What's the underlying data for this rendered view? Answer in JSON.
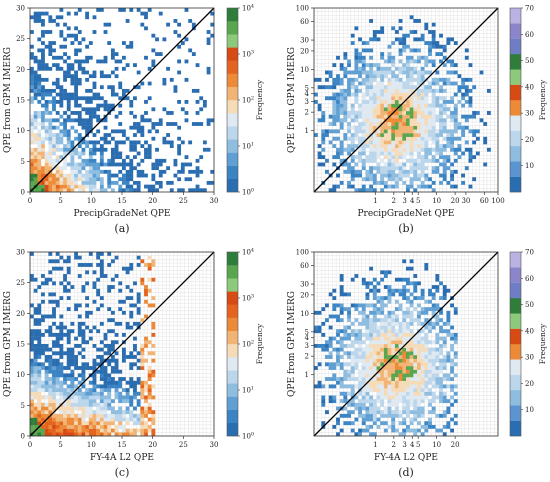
{
  "colors": {
    "bins": [
      "#2a6db0",
      "#3a84c4",
      "#5f9fd3",
      "#8fbde0",
      "#bcd6ec",
      "#dfe9f2",
      "#f6dbb9",
      "#f2b474",
      "#ec8a37",
      "#e4641f",
      "#d84a14",
      "#5aa64f",
      "#2f7d3a"
    ],
    "colorbar_log": [
      "#2a6db0",
      "#3a84c4",
      "#5f9fd3",
      "#8fbde0",
      "#bcd6ec",
      "#dfe9f2",
      "#f6dbb9",
      "#f2b474",
      "#ec8a37",
      "#e4641f",
      "#d84a14",
      "#8cc97a",
      "#5aa64f",
      "#2f7d3a"
    ],
    "colorbar_lin": [
      "#2a6db0",
      "#5a95cf",
      "#8fbde0",
      "#bcd6ec",
      "#dfe9f2",
      "#ec8a37",
      "#d84a14",
      "#8cc97a",
      "#2f7d3a",
      "#6f7ec4",
      "#8b86cc",
      "#b9b2e2"
    ]
  },
  "chart_data": [
    {
      "id": "a",
      "type": "heatmap",
      "caption": "(a)",
      "xlabel": "PrecipGradeNet QPE",
      "ylabel": "QPE from GPM IMERG",
      "xscale": "linear",
      "xlim": [
        0,
        30
      ],
      "ylim": [
        0,
        30
      ],
      "xticks": [
        "0",
        "5",
        "10",
        "15",
        "20",
        "25",
        "30"
      ],
      "yticks": [
        "0",
        "5",
        "10",
        "15",
        "20",
        "25",
        "30"
      ],
      "xtick_values": [
        0,
        5,
        10,
        15,
        20,
        25,
        30
      ],
      "ytick_values": [
        0,
        5,
        10,
        15,
        20,
        25,
        30
      ],
      "diagonal": true,
      "colorbar": {
        "label": "Frequency",
        "scale": "log",
        "ticks": [
          "10^0",
          "10^1",
          "10^2",
          "10^3",
          "10^4"
        ]
      }
    },
    {
      "id": "b",
      "type": "heatmap",
      "caption": "(b)",
      "xlabel": "PrecipGradeNet QPE",
      "ylabel": "QPE from GPM IMERG",
      "xscale": "log",
      "xlim": [
        0.1,
        100
      ],
      "ylim": [
        0.1,
        100
      ],
      "xticks": [
        "1",
        "2",
        "3",
        "4",
        "5",
        "10",
        "20",
        "30",
        "60",
        "100"
      ],
      "yticks": [
        "1",
        "2",
        "3",
        "4",
        "5",
        "10",
        "20",
        "30",
        "60",
        "100"
      ],
      "xtick_values": [
        1,
        2,
        3,
        4,
        5,
        10,
        20,
        30,
        60,
        100
      ],
      "ytick_values": [
        1,
        2,
        3,
        4,
        5,
        10,
        20,
        30,
        60,
        100
      ],
      "diagonal": true,
      "colorbar": {
        "label": "Frequency",
        "scale": "linear",
        "ticks": [
          "10",
          "20",
          "30",
          "40",
          "50",
          "60",
          "70"
        ]
      }
    },
    {
      "id": "c",
      "type": "heatmap",
      "caption": "(c)",
      "xlabel": "FY-4A L2 QPE",
      "ylabel": "QPE from GPM IMERG",
      "xscale": "linear",
      "xlim": [
        0,
        30
      ],
      "ylim": [
        0,
        30
      ],
      "xticks": [
        "0",
        "5",
        "10",
        "15",
        "20",
        "25",
        "30"
      ],
      "yticks": [
        "0",
        "5",
        "10",
        "15",
        "20",
        "25",
        "30"
      ],
      "xtick_values": [
        0,
        5,
        10,
        15,
        20,
        25,
        30
      ],
      "ytick_values": [
        0,
        5,
        10,
        15,
        20,
        25,
        30
      ],
      "diagonal": true,
      "colorbar": {
        "label": "Frequency",
        "scale": "log",
        "ticks": [
          "10^0",
          "10^1",
          "10^2",
          "10^3",
          "10^4"
        ]
      }
    },
    {
      "id": "d",
      "type": "heatmap",
      "caption": "(d)",
      "xlabel": "FY-4A L2 QPE",
      "ylabel": "QPE from GPM IMERG",
      "xscale": "log",
      "xlim": [
        0.1,
        100
      ],
      "ylim": [
        0.1,
        100
      ],
      "xticks": [
        "1",
        "2",
        "3",
        "4",
        "5",
        "10",
        "20"
      ],
      "yticks": [
        "1",
        "2",
        "3",
        "4",
        "5",
        "10",
        "20",
        "30",
        "60",
        "100"
      ],
      "xtick_values": [
        1,
        2,
        3,
        4,
        5,
        10,
        20
      ],
      "ytick_values": [
        1,
        2,
        3,
        4,
        5,
        10,
        20,
        30,
        60,
        100
      ],
      "diagonal": true,
      "colorbar": {
        "label": "Frequency",
        "scale": "linear",
        "ticks": [
          "10",
          "20",
          "30",
          "40",
          "50",
          "60",
          "70"
        ]
      }
    }
  ]
}
